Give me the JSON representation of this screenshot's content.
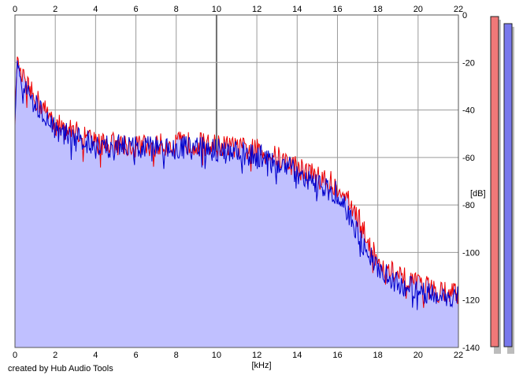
{
  "credit": "created by Hub Audio Tools",
  "chart_data": {
    "type": "area",
    "title": "",
    "xlabel": "[kHz]",
    "ylabel": "[dB]",
    "xlim": [
      0,
      22
    ],
    "ylim": [
      -140,
      0
    ],
    "x_ticks": [
      "0",
      "2",
      "4",
      "6",
      "8",
      "10",
      "12",
      "14",
      "16",
      "18",
      "20",
      "22"
    ],
    "y_ticks": [
      "0",
      "-20",
      "-40",
      "-60",
      "-80",
      "-100",
      "-120",
      "-140"
    ],
    "grid": true,
    "colors": {
      "fill": "#c0c0ff",
      "red_line": "#ee0000",
      "blue_line": "#0000cc",
      "grid": "#9a9a9a",
      "grid_major": "#6e6e6e",
      "meter_red": "#f07878",
      "meter_blue": "#7878ec"
    },
    "series": [
      {
        "color": "red",
        "x": [
          0.0,
          0.1,
          0.3,
          0.6,
          0.9,
          1.2,
          1.5,
          1.8,
          2.0,
          2.5,
          3.0,
          3.5,
          4.0,
          5.0,
          6.0,
          7.0,
          8.0,
          9.0,
          10.0,
          11.0,
          12.0,
          13.0,
          14.0,
          15.0,
          16.0,
          16.5,
          17.0,
          17.5,
          18.0,
          19.0,
          20.0,
          21.0,
          22.0
        ],
        "values": [
          -45,
          -18,
          -25,
          -30,
          -34,
          -37,
          -40,
          -42,
          -46,
          -48,
          -49,
          -51,
          -54,
          -54,
          -55,
          -55,
          -54,
          -54,
          -55,
          -56,
          -57,
          -60,
          -64,
          -68,
          -72,
          -78,
          -85,
          -95,
          -104,
          -110,
          -114,
          -116,
          -117
        ]
      },
      {
        "color": "blue",
        "x": [
          0.0,
          0.1,
          0.3,
          0.6,
          0.9,
          1.2,
          1.5,
          1.8,
          2.0,
          2.5,
          3.0,
          3.5,
          4.0,
          5.0,
          6.0,
          7.0,
          8.0,
          9.0,
          10.0,
          11.0,
          12.0,
          13.0,
          14.0,
          15.0,
          16.0,
          16.5,
          17.0,
          17.5,
          18.0,
          19.0,
          20.0,
          21.0,
          22.0
        ],
        "values": [
          -45,
          -20,
          -27,
          -32,
          -36,
          -39,
          -42,
          -44,
          -48,
          -50,
          -51,
          -53,
          -56,
          -55,
          -56,
          -56,
          -56,
          -56,
          -57,
          -58,
          -59,
          -62,
          -66,
          -71,
          -75,
          -82,
          -92,
          -100,
          -107,
          -113,
          -116,
          -118,
          -119
        ]
      }
    ],
    "level_meters": [
      {
        "color": "red"
      },
      {
        "color": "blue"
      }
    ]
  }
}
